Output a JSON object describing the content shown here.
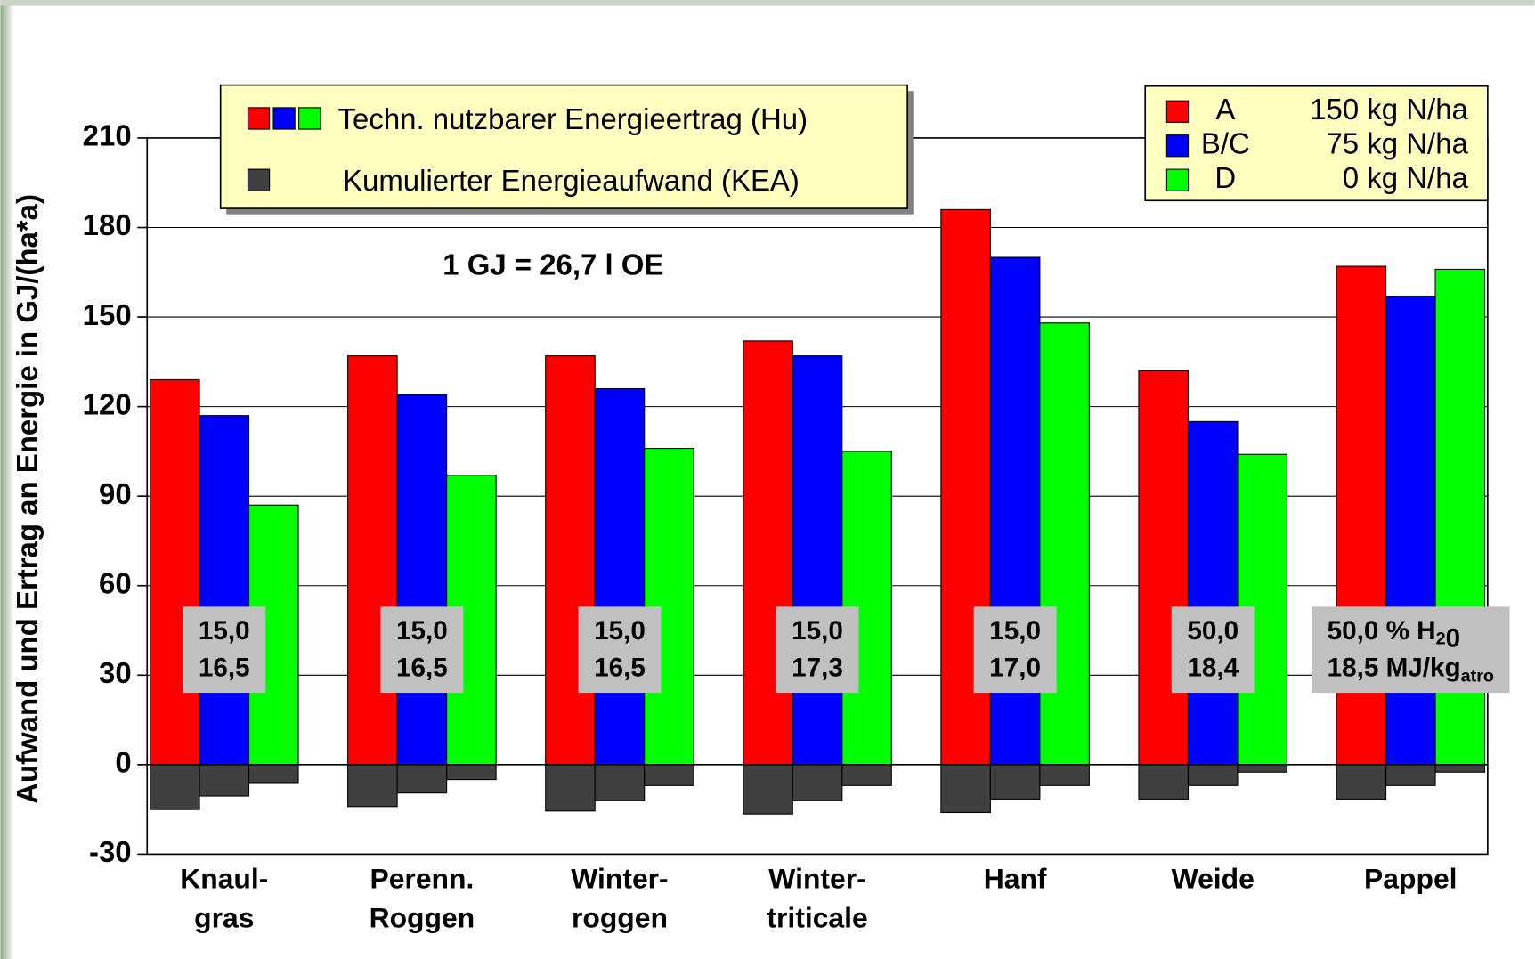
{
  "chart_data": {
    "type": "bar",
    "y_label": "Aufwand und Ertrag an Energie in GJ/(ha*a)",
    "ylim": [
      -30,
      210
    ],
    "yticks": [
      -30,
      0,
      30,
      60,
      90,
      120,
      150,
      180,
      210
    ],
    "grid": true,
    "categories": [
      [
        "Knaul-",
        "gras"
      ],
      [
        "Perenn.",
        "Roggen"
      ],
      [
        "Winter-",
        "roggen"
      ],
      [
        "Winter-",
        "triticale"
      ],
      [
        "Hanf"
      ],
      [
        "Weide"
      ],
      [
        "Pappel"
      ]
    ],
    "series": [
      {
        "name": "A",
        "description": "150 kg N/ha",
        "color": "#ff0000",
        "values": [
          129,
          137,
          137,
          142,
          186,
          132,
          167
        ],
        "kea_values": [
          -15,
          -14,
          -15.5,
          -16.5,
          -16,
          -11.5,
          -11.5
        ]
      },
      {
        "name": "B/C",
        "description": "75 kg N/ha",
        "color": "#0000ff",
        "values": [
          117,
          124,
          126,
          137,
          170,
          115,
          157
        ],
        "kea_values": [
          -10.5,
          -9.5,
          -12,
          -12,
          -11.5,
          -7,
          -7
        ]
      },
      {
        "name": "D",
        "description": "0 kg N/ha",
        "color": "#00ff00",
        "values": [
          87,
          97,
          106,
          105,
          148,
          104,
          166
        ],
        "kea_values": [
          -6,
          -5,
          -7,
          -7,
          -7,
          -2.5,
          -2.5
        ]
      }
    ],
    "kea_color": "#404040",
    "legend_groups": [
      {
        "label": "Techn. nutzbarer Energieertrag (Hu)"
      },
      {
        "label": "Kumulierter Energieaufwand (KEA)"
      }
    ],
    "annotation": "1 GJ = 26,7 l OE",
    "category_notes": [
      [
        [
          "15,0"
        ],
        [
          "16,5"
        ]
      ],
      [
        [
          "15,0"
        ],
        [
          "16,5"
        ]
      ],
      [
        [
          "15,0"
        ],
        [
          "16,5"
        ]
      ],
      [
        [
          "15,0"
        ],
        [
          "17,3"
        ]
      ],
      [
        [
          "15,0"
        ],
        [
          "17,0"
        ]
      ],
      [
        [
          "50,0"
        ],
        [
          "18,4"
        ]
      ],
      [
        [
          "50,0 % H",
          {
            "sub": "2"
          },
          "0"
        ],
        [
          "18,5 MJ/kg",
          {
            "sub": "atro"
          }
        ]
      ]
    ]
  }
}
